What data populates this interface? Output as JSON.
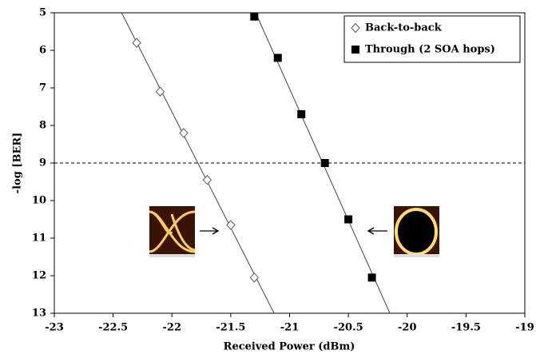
{
  "chart_data": {
    "type": "scatter",
    "x_label": "Received Power (dBm)",
    "y_label": "-log [BER]",
    "xlim": [
      -23,
      -19
    ],
    "xticks": [
      -23,
      -22.5,
      -22,
      -21.5,
      -21,
      -20.5,
      -20,
      -19.5,
      -19
    ],
    "ylim": [
      5,
      13
    ],
    "yticks": [
      5,
      6,
      7,
      8,
      9,
      10,
      11,
      12,
      13
    ],
    "y_inverted": true,
    "threshold": 9,
    "legend": "top-right",
    "fit_lines": true,
    "series": [
      {
        "name": "Back-to-back",
        "marker": "diamond",
        "color": "#ffffff",
        "x": [
          -22.3,
          -22.1,
          -21.9,
          -21.7,
          -21.5,
          -21.3
        ],
        "values": [
          5.8,
          7.1,
          8.2,
          9.45,
          10.65,
          12.05
        ]
      },
      {
        "name": "Through (2 SOA hops)",
        "marker": "square",
        "color": "#000000",
        "x": [
          -21.3,
          -21.1,
          -20.9,
          -20.7,
          -20.5,
          -20.3
        ],
        "values": [
          5.1,
          6.2,
          7.7,
          9.0,
          10.5,
          12.05
        ]
      }
    ]
  }
}
